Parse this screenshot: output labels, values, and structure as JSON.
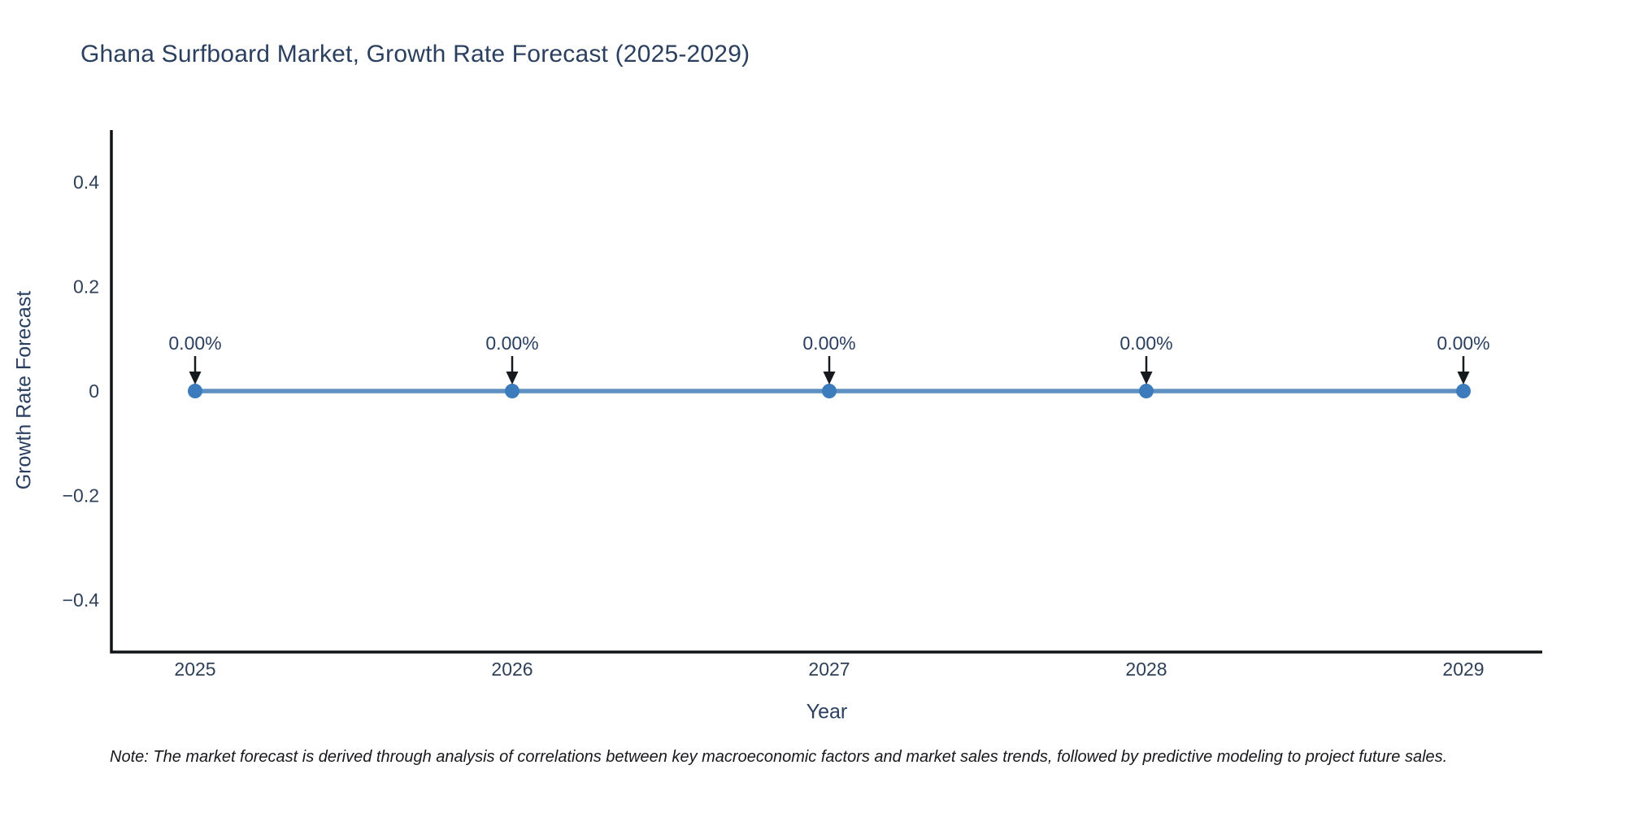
{
  "title": "Ghana Surfboard Market, Growth Rate Forecast (2025-2029)",
  "note": "Note: The market forecast is derived through analysis of correlations between key macroeconomic factors and market sales trends, followed by predictive modeling to project future sales.",
  "chart_data": {
    "type": "line",
    "title": "Ghana Surfboard Market, Growth Rate Forecast (2025-2029)",
    "categories": [
      "2025",
      "2026",
      "2027",
      "2028",
      "2029"
    ],
    "series": [
      {
        "name": "Growth Rate Forecast",
        "values": [
          0,
          0,
          0,
          0,
          0
        ]
      }
    ],
    "point_labels": [
      "0.00%",
      "0.00%",
      "0.00%",
      "0.00%",
      "0.00%"
    ],
    "xlabel": "Year",
    "ylabel": "Growth Rate Forecast",
    "ylim": [
      -0.5,
      0.5
    ],
    "yticks": [
      0.4,
      0.2,
      0,
      -0.2,
      -0.4
    ],
    "ytick_labels": [
      "0.4",
      "0.2",
      "0",
      "−0.2",
      "−0.4"
    ],
    "grid": false,
    "legend": "none",
    "annotation_style": "arrow-down",
    "colors": {
      "line": "#5e90c1",
      "marker": "#3c7cbd",
      "axis": "#101419",
      "tick_text": "#2e3f58",
      "annotation_text": "#2a3f5f",
      "arrow": "#16191d",
      "note_text": "#17171d",
      "title_text": "#2b3f5e"
    }
  }
}
